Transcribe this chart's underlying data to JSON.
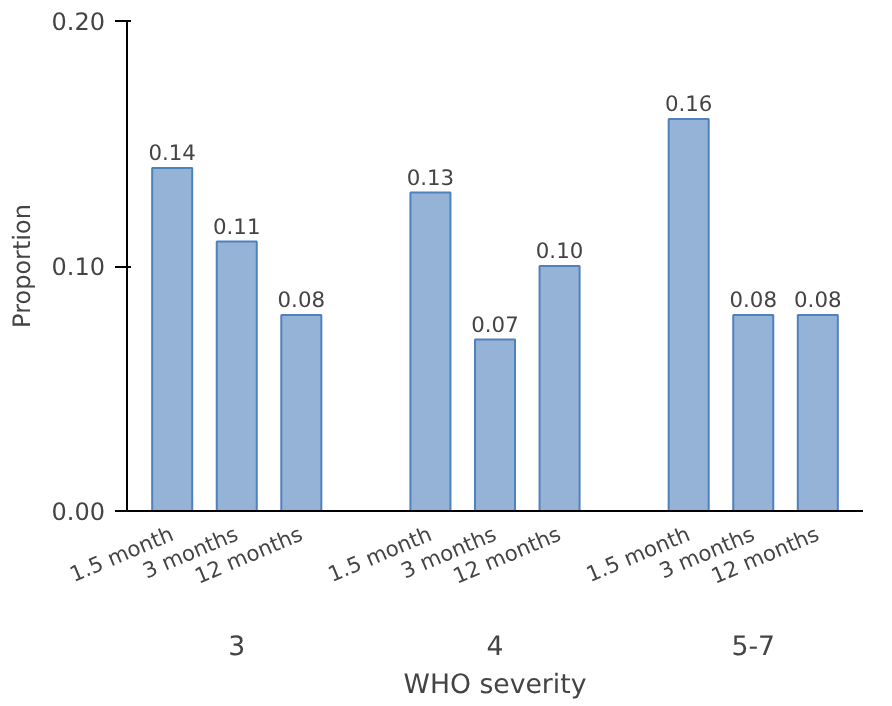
{
  "chart_data": {
    "type": "bar",
    "xlabel": "WHO severity",
    "ylabel": "Proportion",
    "categories": [
      "1.5 month",
      "3 months",
      "12 months",
      "1.5 month",
      "3 months",
      "12 months",
      "1.5 month",
      "3 months",
      "12 months"
    ],
    "annotations": [
      "3",
      "4",
      "5-7"
    ],
    "values": [
      0.14,
      0.11,
      0.08,
      0.13,
      0.07,
      0.1,
      0.16,
      0.08,
      0.08
    ],
    "color": "#95b3d7",
    "ylim": [
      0,
      0.2
    ],
    "yticks": [
      {
        "value": 0,
        "label": "0.00"
      },
      {
        "value": 0.1,
        "label": "0.10"
      },
      {
        "value": 0.2,
        "label": "0.20"
      }
    ],
    "value_labels": [
      "0.14",
      "0.11",
      "0.08",
      "0.13",
      "0.07",
      "0.10",
      "0.16",
      "0.08",
      "0.08"
    ],
    "grid": false
  }
}
